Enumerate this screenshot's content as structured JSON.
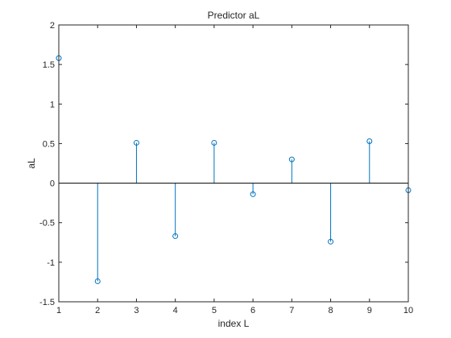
{
  "chart_data": {
    "type": "stem",
    "title": "Predictor aL",
    "xlabel": "index L",
    "ylabel": "aL",
    "x": [
      1,
      2,
      3,
      4,
      5,
      6,
      7,
      8,
      9,
      10
    ],
    "values": [
      1.58,
      -1.24,
      0.51,
      -0.67,
      0.51,
      -0.14,
      0.3,
      -0.74,
      0.53,
      -0.09
    ],
    "xlim": [
      1,
      10
    ],
    "ylim": [
      -1.5,
      2
    ],
    "xticks": [
      1,
      2,
      3,
      4,
      5,
      6,
      7,
      8,
      9,
      10
    ],
    "yticks": [
      -1.5,
      -1,
      -0.5,
      0,
      0.5,
      1,
      1.5,
      2
    ],
    "xtick_labels": [
      "1",
      "2",
      "3",
      "4",
      "5",
      "6",
      "7",
      "8",
      "9",
      "10"
    ],
    "ytick_labels": [
      "-1.5",
      "-1",
      "-0.5",
      "0",
      "0.5",
      "1",
      "1.5",
      "2"
    ],
    "grid": false,
    "baseline": 0,
    "colors": {
      "series": "#0072bd",
      "axis": "#262626",
      "baseline": "#000000"
    }
  }
}
